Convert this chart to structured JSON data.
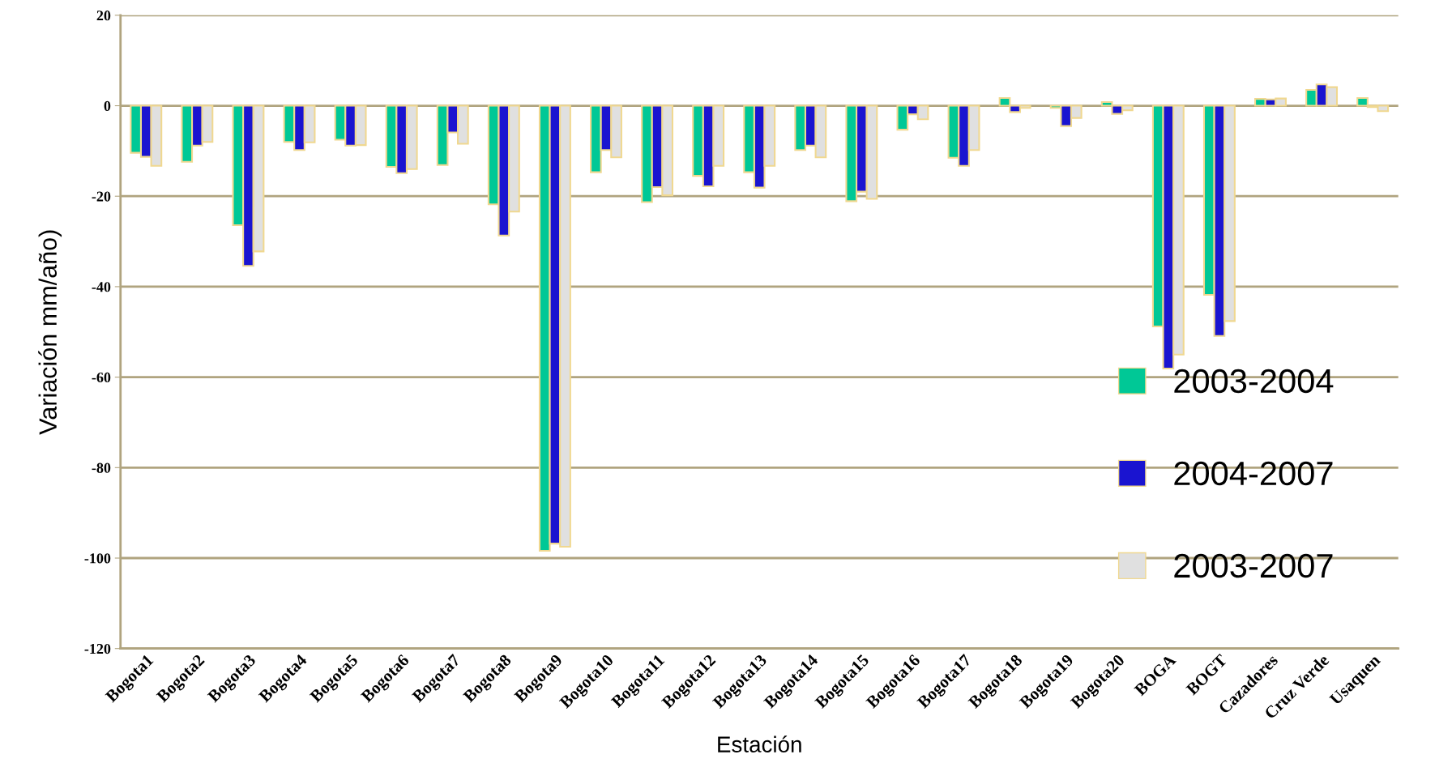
{
  "chart_data": {
    "type": "bar",
    "xlabel": "Estación",
    "ylabel": "Variación mm/año)",
    "categories": [
      "Bogota1",
      "Bogota2",
      "Bogota3",
      "Bogota4",
      "Bogota5",
      "Bogota6",
      "Bogota7",
      "Bogota8",
      "Bogota9",
      "Bogota10",
      "Bogota11",
      "Bogota12",
      "Bogota13",
      "Bogota14",
      "Bogota15",
      "Bogota16",
      "Bogota17",
      "Bogota18",
      "Bogota19",
      "Bogota20",
      "BOGA",
      "BOGT",
      "Cazadores",
      "Cruz Verde",
      "Usaquen"
    ],
    "series": [
      {
        "name": "2003-2004",
        "color": "#00c896",
        "values": [
          -10.4,
          -12.4,
          -26.4,
          -8,
          -7.5,
          -13.5,
          -13.1,
          -21.8,
          -98.4,
          -14.7,
          -21.3,
          -15.5,
          -14.7,
          -9.8,
          -21.1,
          -5.3,
          -11.5,
          1.7,
          -0.5,
          0.8,
          -48.8,
          -41.8,
          1.5,
          3.5,
          1.7
        ]
      },
      {
        "name": "2004-2007",
        "color": "#1a14d0",
        "values": [
          -11.3,
          -8.8,
          -35.4,
          -9.8,
          -8.8,
          -14.9,
          -5.9,
          -28.7,
          -96.8,
          -9.8,
          -18,
          -17.8,
          -18.1,
          -8.8,
          -19,
          -1.9,
          -13.3,
          -1.4,
          -4.5,
          -1.8,
          -58.1,
          -50.9,
          1.4,
          4.7,
          -0.3
        ]
      },
      {
        "name": "2003-2007",
        "color": "#e0e0e0",
        "values": [
          -13.3,
          -8,
          -32.2,
          -8.1,
          -8.7,
          -14,
          -8.4,
          -23.4,
          -97.5,
          -11.4,
          -19.8,
          -13.3,
          -13.3,
          -11.4,
          -20.6,
          -3,
          -9.8,
          -0.5,
          -2.7,
          -1,
          -55,
          -47.6,
          1.6,
          4.1,
          -1.2
        ]
      }
    ],
    "ylim": [
      -120,
      20
    ],
    "yticks": [
      -120,
      -100,
      -80,
      -60,
      -40,
      -20,
      0,
      20
    ],
    "grid": "y",
    "legend": "bottom right"
  }
}
